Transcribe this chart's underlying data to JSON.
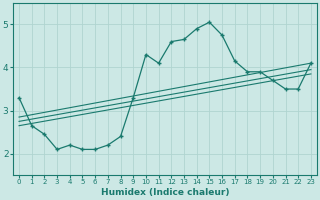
{
  "xlabel": "Humidex (Indice chaleur)",
  "ylabel": "",
  "bg_color": "#cce8e5",
  "grid_color": "#b0d4d0",
  "line_color": "#1a7a6e",
  "xlim": [
    -0.5,
    23.5
  ],
  "ylim": [
    1.5,
    5.5
  ],
  "xticks": [
    0,
    1,
    2,
    3,
    4,
    5,
    6,
    7,
    8,
    9,
    10,
    11,
    12,
    13,
    14,
    15,
    16,
    17,
    18,
    19,
    20,
    21,
    22,
    23
  ],
  "yticks": [
    2,
    3,
    4,
    5
  ],
  "line1_x": [
    0,
    1,
    2,
    3,
    4,
    5,
    6,
    7,
    8,
    9,
    10,
    11,
    12,
    13,
    14,
    15,
    16,
    17,
    18,
    19,
    20,
    21,
    22,
    23
  ],
  "line1_y": [
    3.3,
    2.65,
    2.45,
    2.1,
    2.2,
    2.1,
    2.1,
    2.2,
    2.4,
    3.3,
    4.3,
    4.1,
    4.6,
    4.65,
    4.9,
    5.05,
    4.75,
    4.15,
    3.9,
    3.9,
    3.7,
    3.5,
    3.5,
    4.1
  ],
  "line2_x": [
    0,
    23
  ],
  "line2_y": [
    2.65,
    3.85
  ],
  "line3_x": [
    0,
    23
  ],
  "line3_y": [
    2.75,
    3.95
  ],
  "line4_x": [
    0,
    23
  ],
  "line4_y": [
    2.85,
    4.1
  ]
}
